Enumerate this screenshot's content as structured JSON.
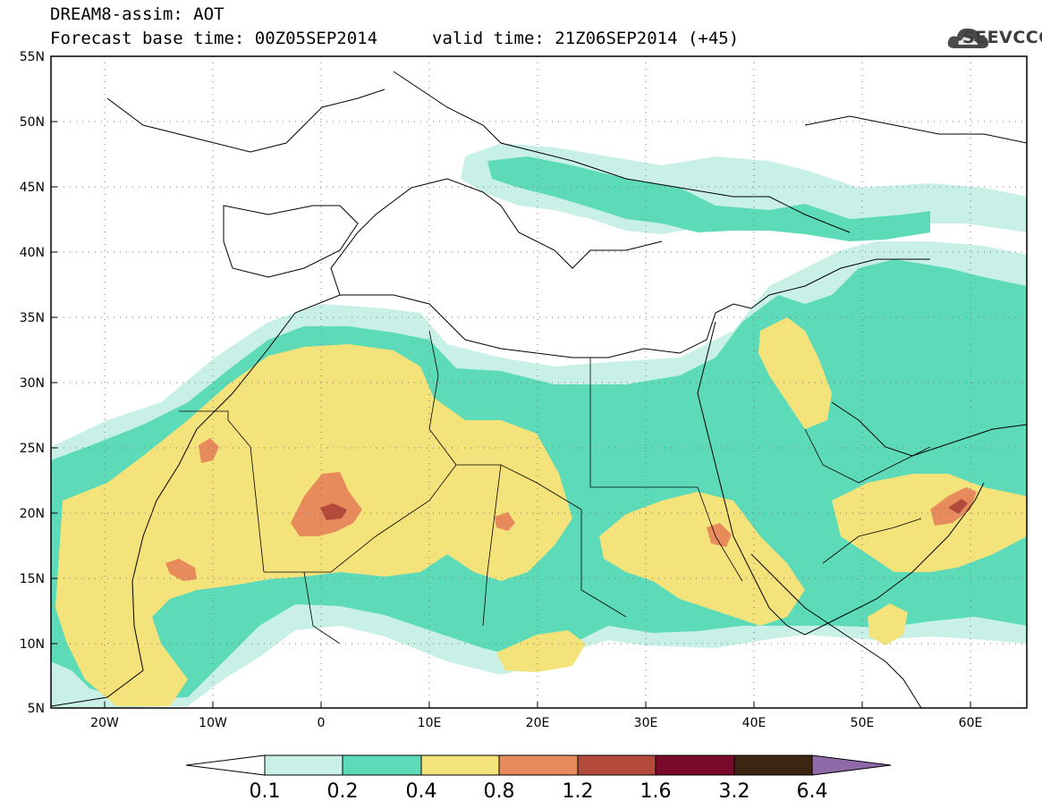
{
  "header": {
    "line1": "DREAM8-assim: AOT",
    "base_time": "Forecast base time: 00Z05SEP2014",
    "valid_time": "valid time: 21Z06SEP2014 (+45)"
  },
  "logo": {
    "text": "SEEVCCC",
    "icon": "cloud-icon"
  },
  "map": {
    "lon_range": [
      -25,
      65
    ],
    "lat_range": [
      5,
      55
    ],
    "lat_ticks": [
      "55N",
      "50N",
      "45N",
      "40N",
      "35N",
      "30N",
      "25N",
      "20N",
      "15N",
      "10N",
      "5N"
    ],
    "lon_ticks": [
      "20W",
      "10W",
      "0",
      "10E",
      "20E",
      "30E",
      "40E",
      "50E",
      "60E"
    ],
    "grid": "dotted"
  },
  "colorbar": {
    "labels": [
      "0.1",
      "0.2",
      "0.4",
      "0.8",
      "1.2",
      "1.6",
      "3.2",
      "6.4"
    ],
    "colors": [
      "#ffffff",
      "#c8f0e6",
      "#5ddbb9",
      "#f4e27a",
      "#e88b5c",
      "#b34a3c",
      "#7a0a2c",
      "#3d2512",
      "#8e6aa8"
    ]
  }
}
